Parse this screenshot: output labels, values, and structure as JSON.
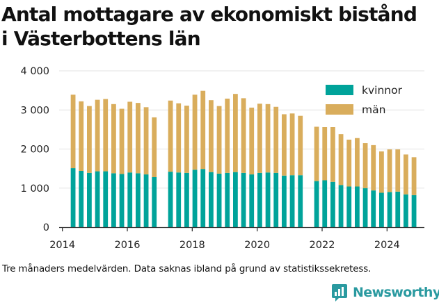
{
  "title_lines": [
    "Antal mottagare av ekonomiskt bistånd",
    "i Västerbottens län"
  ],
  "caption": "Tre månaders medelvärden. Data saknas ibland på grund av statistikssekretess.",
  "brand": {
    "name": "Newsworthy",
    "icon": "newsworthy-chart-logo-icon",
    "color": "#2a9aa0"
  },
  "colors": {
    "kvinnor": "#00a39a",
    "man": "#d9ad5c",
    "grid": "#e3e3e3",
    "axis": "#333333"
  },
  "chart_data": {
    "type": "bar",
    "stacked": true,
    "title": "Antal mottagare av ekonomiskt bistånd i Västerbottens län",
    "xlabel": "",
    "ylabel": "",
    "ylim": [
      0,
      4000
    ],
    "xlim": [
      2013.9,
      2025.15
    ],
    "y_ticks": [
      0,
      1000,
      2000,
      3000,
      4000
    ],
    "y_tick_labels": [
      "0",
      "1 000",
      "2 000",
      "3 000",
      "4 000"
    ],
    "x_ticks": [
      2014,
      2016,
      2018,
      2020,
      2022,
      2024
    ],
    "x_tick_labels": [
      "2014",
      "2016",
      "2018",
      "2020",
      "2022",
      "2024"
    ],
    "legend_position": "top-right",
    "grid": "horizontal",
    "x": [
      2014.33,
      2014.58,
      2014.83,
      2015.08,
      2015.33,
      2015.58,
      2015.83,
      2016.08,
      2016.33,
      2016.58,
      2016.83,
      2017.33,
      2017.58,
      2017.83,
      2018.08,
      2018.33,
      2018.58,
      2018.83,
      2019.08,
      2019.33,
      2019.58,
      2019.83,
      2020.08,
      2020.33,
      2020.58,
      2020.83,
      2021.08,
      2021.33,
      2021.83,
      2022.08,
      2022.33,
      2022.58,
      2022.83,
      2023.08,
      2023.33,
      2023.58,
      2023.83,
      2024.08,
      2024.33,
      2024.58,
      2024.83
    ],
    "series": [
      {
        "name": "kvinnor",
        "color": "#00a39a",
        "values": [
          1510,
          1440,
          1390,
          1430,
          1430,
          1380,
          1360,
          1400,
          1380,
          1350,
          1280,
          1420,
          1400,
          1390,
          1470,
          1490,
          1410,
          1370,
          1390,
          1410,
          1390,
          1350,
          1390,
          1400,
          1390,
          1320,
          1330,
          1330,
          1180,
          1200,
          1160,
          1080,
          1040,
          1040,
          1000,
          940,
          880,
          900,
          910,
          840,
          820
        ]
      },
      {
        "name": "män",
        "color": "#d9ad5c",
        "values": [
          1880,
          1780,
          1710,
          1830,
          1850,
          1770,
          1670,
          1810,
          1800,
          1720,
          1530,
          1820,
          1770,
          1720,
          1920,
          2000,
          1840,
          1730,
          1900,
          2000,
          1910,
          1710,
          1770,
          1750,
          1690,
          1570,
          1580,
          1520,
          1390,
          1360,
          1400,
          1300,
          1200,
          1240,
          1150,
          1160,
          1060,
          1090,
          1080,
          1020,
          970
        ]
      }
    ]
  }
}
